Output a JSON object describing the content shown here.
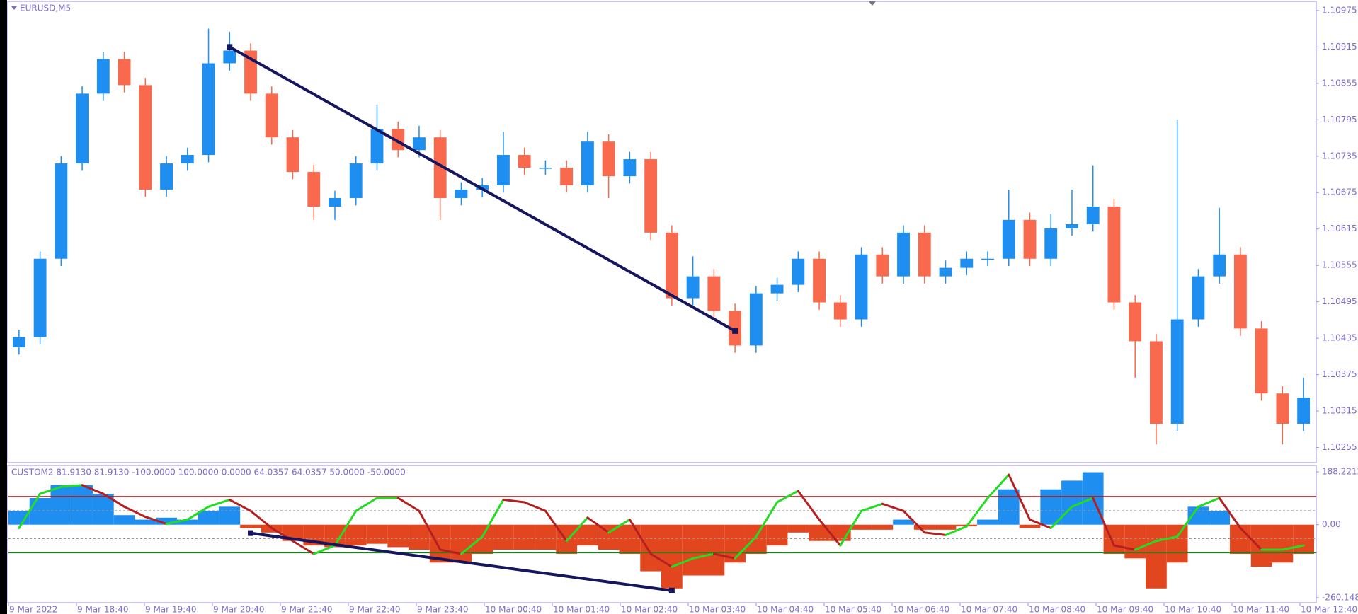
{
  "main": {
    "symbol": "EURUSD,M5",
    "ylim": [
      1.1023,
      1.1099
    ],
    "yticks": [
      1.10975,
      1.10915,
      1.10855,
      1.10795,
      1.10735,
      1.10675,
      1.10615,
      1.10555,
      1.10495,
      1.10435,
      1.10375,
      1.10315,
      1.10255
    ],
    "up_color": "#1e8ff0",
    "down_color": "#f8694d",
    "candles": [
      [
        1.1042,
        1.10449,
        1.10408,
        1.10437
      ],
      [
        1.10437,
        1.10578,
        1.10425,
        1.10566
      ],
      [
        1.10566,
        1.10735,
        1.10554,
        1.10723
      ],
      [
        1.10723,
        1.1085,
        1.10711,
        1.10838
      ],
      [
        1.10838,
        1.10907,
        1.10826,
        1.10895
      ],
      [
        1.10895,
        1.10907,
        1.1084,
        1.10852
      ],
      [
        1.10852,
        1.10864,
        1.10668,
        1.1068
      ],
      [
        1.1068,
        1.10735,
        1.10668,
        1.10723
      ],
      [
        1.10723,
        1.10749,
        1.10711,
        1.10737
      ],
      [
        1.10737,
        1.10945,
        1.10725,
        1.10888
      ],
      [
        1.10888,
        1.1094,
        1.10876,
        1.10909
      ],
      [
        1.10909,
        1.10921,
        1.10826,
        1.10838
      ],
      [
        1.10838,
        1.1085,
        1.10754,
        1.10766
      ],
      [
        1.10766,
        1.10778,
        1.10697,
        1.10709
      ],
      [
        1.10709,
        1.10721,
        1.1063,
        1.10652
      ],
      [
        1.10652,
        1.10678,
        1.1063,
        1.10666
      ],
      [
        1.10666,
        1.10735,
        1.10654,
        1.10723
      ],
      [
        1.10723,
        1.1082,
        1.10711,
        1.1078
      ],
      [
        1.1078,
        1.10792,
        1.10733,
        1.10745
      ],
      [
        1.10745,
        1.10785,
        1.10733,
        1.10766
      ],
      [
        1.10766,
        1.10778,
        1.1063,
        1.10666
      ],
      [
        1.10666,
        1.10692,
        1.10654,
        1.1068
      ],
      [
        1.1068,
        1.10699,
        1.10668,
        1.10687
      ],
      [
        1.10687,
        1.10775,
        1.10675,
        1.10737
      ],
      [
        1.10737,
        1.10749,
        1.10704,
        1.10716
      ],
      [
        1.10716,
        1.10728,
        1.10704,
        1.10716
      ],
      [
        1.10716,
        1.10728,
        1.10675,
        1.10687
      ],
      [
        1.10687,
        1.10775,
        1.10675,
        1.10759
      ],
      [
        1.10759,
        1.10771,
        1.10666,
        1.10702
      ],
      [
        1.10702,
        1.10742,
        1.1069,
        1.1073
      ],
      [
        1.1073,
        1.10742,
        1.10597,
        1.10609
      ],
      [
        1.10609,
        1.10621,
        1.10489,
        1.10501
      ],
      [
        1.10501,
        1.1057,
        1.10489,
        1.10537
      ],
      [
        1.10537,
        1.10549,
        1.10468,
        1.1048
      ],
      [
        1.1048,
        1.10492,
        1.10411,
        1.10423
      ],
      [
        1.10423,
        1.10521,
        1.10411,
        1.10509
      ],
      [
        1.10509,
        1.10535,
        1.10497,
        1.10523
      ],
      [
        1.10523,
        1.10578,
        1.10511,
        1.10566
      ],
      [
        1.10566,
        1.10578,
        1.10482,
        1.10494
      ],
      [
        1.10494,
        1.10506,
        1.10454,
        1.10466
      ],
      [
        1.10466,
        1.10585,
        1.10454,
        1.10573
      ],
      [
        1.10573,
        1.10585,
        1.10525,
        1.10537
      ],
      [
        1.10537,
        1.10621,
        1.10525,
        1.10609
      ],
      [
        1.10609,
        1.10621,
        1.10525,
        1.10537
      ],
      [
        1.10537,
        1.10563,
        1.10525,
        1.10551
      ],
      [
        1.10551,
        1.10578,
        1.10539,
        1.10566
      ],
      [
        1.10566,
        1.10578,
        1.10554,
        1.10566
      ],
      [
        1.10566,
        1.1068,
        1.10554,
        1.1063
      ],
      [
        1.1063,
        1.10642,
        1.10554,
        1.10566
      ],
      [
        1.10566,
        1.1064,
        1.10554,
        1.10616
      ],
      [
        1.10616,
        1.1068,
        1.10604,
        1.10623
      ],
      [
        1.10623,
        1.1072,
        1.10611,
        1.10652
      ],
      [
        1.10652,
        1.10664,
        1.10482,
        1.10494
      ],
      [
        1.10494,
        1.10506,
        1.1037,
        1.1043
      ],
      [
        1.1043,
        1.10442,
        1.1026,
        1.10294
      ],
      [
        1.10294,
        1.10795,
        1.10282,
        1.10466
      ],
      [
        1.10466,
        1.10549,
        1.10454,
        1.10537
      ],
      [
        1.10537,
        1.1065,
        1.10525,
        1.10573
      ],
      [
        1.10573,
        1.10585,
        1.10439,
        1.10451
      ],
      [
        1.10451,
        1.10463,
        1.10332,
        1.10344
      ],
      [
        1.10344,
        1.10356,
        1.1026,
        1.10294
      ],
      [
        1.10294,
        1.1037,
        1.10282,
        1.10337
      ]
    ],
    "trendline": {
      "color": "#16165e",
      "points": [
        {
          "candle": 10,
          "value": 1.10915
        },
        {
          "candle": 34,
          "value": 1.10447
        }
      ]
    }
  },
  "indicator": {
    "label": "CUSTOM2 81.9130 81.9130 -100.0000 100.0000 0.0000 64.0357 64.0357 50.0000 -50.0000",
    "ylim": [
      -278,
      211
    ],
    "yticks": [
      188.2212,
      {
        "value": 0,
        "label": "0.00"
      },
      -260.1484
    ],
    "levels": [
      {
        "value": 100,
        "color": "#a01010",
        "dash": false
      },
      {
        "value": 50,
        "color": "#999999",
        "dash": true
      },
      {
        "value": -50,
        "color": "#999999",
        "dash": true
      },
      {
        "value": -100,
        "color": "#118811",
        "dash": false
      }
    ],
    "hist_up_color": "#1e8ff0",
    "hist_down_color": "#e2461f",
    "histogram": [
      49,
      95,
      141,
      141,
      110,
      34,
      18,
      25,
      18,
      49,
      64,
      -12,
      -28,
      -58,
      -74,
      -80,
      -74,
      -68,
      -80,
      -89,
      -135,
      -135,
      -104,
      -89,
      -89,
      -89,
      -104,
      -74,
      -89,
      -104,
      -166,
      -227,
      -181,
      -181,
      -135,
      -104,
      -74,
      -28,
      -58,
      -58,
      -18,
      -18,
      18,
      -18,
      -18,
      -6,
      18,
      126,
      -12,
      126,
      157,
      187,
      -104,
      -120,
      -227,
      -135,
      64,
      49,
      -104,
      -150,
      -135,
      -104
    ],
    "line_up_color": "#22dd22",
    "line_down_color": "#b51f1f",
    "line": [
      -12,
      110,
      135,
      141,
      110,
      64,
      28,
      3,
      18,
      64,
      89,
      49,
      -12,
      -58,
      -104,
      -74,
      49,
      95,
      95,
      49,
      -89,
      -104,
      -43,
      89,
      80,
      49,
      -58,
      25,
      -28,
      18,
      -104,
      -150,
      -120,
      -104,
      -120,
      -43,
      80,
      120,
      18,
      -74,
      49,
      74,
      49,
      -28,
      -37,
      -6,
      95,
      178,
      18,
      -12,
      64,
      95,
      -74,
      -89,
      -58,
      -43,
      64,
      95,
      -12,
      -89,
      -89,
      -74
    ],
    "trendline": {
      "color": "#16165e",
      "points": [
        {
          "candle": 11,
          "value": -30
        },
        {
          "candle": 31,
          "value": -235
        }
      ]
    }
  },
  "time_labels": [
    "9 Mar 2022",
    "9 Mar 18:40",
    "9 Mar 19:40",
    "9 Mar 20:40",
    "9 Mar 21:40",
    "9 Mar 22:40",
    "9 Mar 23:40",
    "10 Mar 00:40",
    "10 Mar 01:40",
    "10 Mar 02:40",
    "10 Mar 03:40",
    "10 Mar 04:40",
    "10 Mar 05:40",
    "10 Mar 06:40",
    "10 Mar 07:40",
    "10 Mar 08:40",
    "10 Mar 09:40",
    "10 Mar 10:40",
    "10 Mar 11:40",
    "10 Mar 12:40"
  ]
}
